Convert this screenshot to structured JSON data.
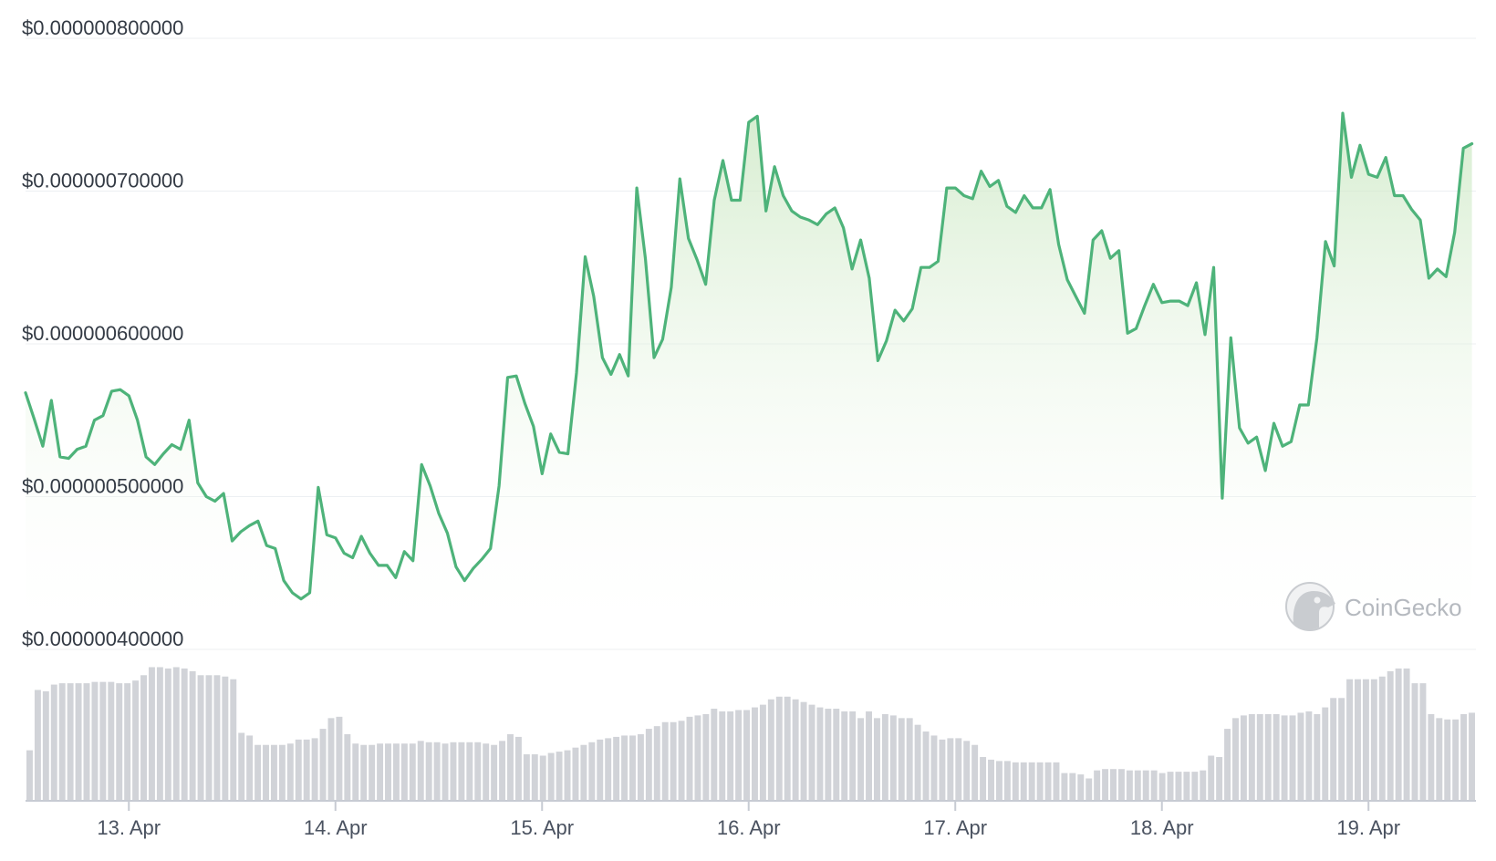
{
  "chart_data": {
    "type": "area",
    "watermark": "CoinGecko",
    "colors": {
      "line": "#4eb37a",
      "fill_top": "#c9e7c0",
      "volume_bar": "#d1d3d8",
      "grid": "#eceff2",
      "axis": "#c7cbd3"
    },
    "price_axis": {
      "ylim": [
        4e-07,
        8e-07
      ],
      "tick_values": [
        8e-07,
        7e-07,
        6e-07,
        5e-07,
        4e-07
      ],
      "tick_labels": [
        "$0.000000800000",
        "$0.000000700000",
        "$0.000000600000",
        "$0.000000500000",
        "$0.000000400000"
      ]
    },
    "x_axis": {
      "range_days": [
        12.5,
        19.52
      ],
      "tick_values": [
        13,
        14,
        15,
        16,
        17,
        18,
        19
      ],
      "tick_labels": [
        "13. Apr",
        "14. Apr",
        "15. Apr",
        "16. Apr",
        "17. Apr",
        "18. Apr",
        "19. Apr"
      ]
    },
    "price_series": {
      "start_day": 12.5,
      "step_day": 0.04167,
      "values_e9": [
        568,
        551,
        533,
        563,
        526,
        525,
        531,
        533,
        550,
        553,
        569,
        570,
        566,
        550,
        526,
        521,
        528,
        534,
        531,
        550,
        509,
        500,
        497,
        502,
        471,
        477,
        481,
        484,
        468,
        466,
        445,
        437,
        433,
        437,
        506,
        475,
        473,
        463,
        460,
        474,
        463,
        455,
        455,
        447,
        464,
        458,
        521,
        507,
        489,
        476,
        454,
        445,
        453,
        459,
        466,
        507,
        578,
        579,
        561,
        546,
        515,
        541,
        529,
        528,
        581,
        657,
        631,
        591,
        580,
        593,
        579,
        702,
        656,
        591,
        603,
        637,
        708,
        669,
        655,
        639,
        694,
        720,
        694,
        694,
        745,
        749,
        687,
        716,
        697,
        687,
        683,
        681,
        678,
        685,
        689,
        676,
        649,
        668,
        643,
        589,
        602,
        622,
        615,
        623,
        650,
        650,
        654,
        702,
        702,
        697,
        695,
        713,
        703,
        707,
        690,
        686,
        697,
        689,
        689,
        701,
        665,
        642,
        631,
        620,
        668,
        674,
        656,
        661,
        607,
        610,
        625,
        639,
        627,
        628,
        628,
        625,
        640,
        606,
        650,
        499,
        604,
        545,
        535,
        539,
        517,
        548,
        533,
        536,
        560,
        560,
        604,
        667,
        651,
        751,
        709,
        730,
        711,
        709,
        722,
        697,
        697,
        688,
        681,
        643,
        649,
        644,
        673,
        728,
        731
      ]
    },
    "volume_series": {
      "values_rel": [
        0.37,
        0.82,
        0.81,
        0.86,
        0.87,
        0.87,
        0.87,
        0.87,
        0.88,
        0.88,
        0.88,
        0.87,
        0.87,
        0.89,
        0.93,
        0.99,
        0.99,
        0.98,
        0.99,
        0.98,
        0.96,
        0.93,
        0.93,
        0.93,
        0.92,
        0.9,
        0.5,
        0.48,
        0.41,
        0.41,
        0.41,
        0.41,
        0.42,
        0.45,
        0.45,
        0.46,
        0.53,
        0.61,
        0.62,
        0.49,
        0.42,
        0.41,
        0.41,
        0.42,
        0.42,
        0.42,
        0.42,
        0.42,
        0.44,
        0.43,
        0.43,
        0.42,
        0.43,
        0.43,
        0.43,
        0.43,
        0.42,
        0.41,
        0.44,
        0.49,
        0.47,
        0.34,
        0.34,
        0.33,
        0.35,
        0.36,
        0.37,
        0.39,
        0.41,
        0.43,
        0.45,
        0.46,
        0.47,
        0.48,
        0.48,
        0.49,
        0.53,
        0.55,
        0.58,
        0.58,
        0.59,
        0.62,
        0.63,
        0.64,
        0.68,
        0.66,
        0.66,
        0.67,
        0.67,
        0.69,
        0.71,
        0.75,
        0.77,
        0.77,
        0.75,
        0.73,
        0.71,
        0.69,
        0.68,
        0.68,
        0.66,
        0.66,
        0.61,
        0.66,
        0.61,
        0.64,
        0.63,
        0.61,
        0.61,
        0.56,
        0.51,
        0.48,
        0.45,
        0.46,
        0.46,
        0.44,
        0.41,
        0.32,
        0.3,
        0.29,
        0.29,
        0.28,
        0.28,
        0.28,
        0.28,
        0.28,
        0.28,
        0.2,
        0.2,
        0.19,
        0.16,
        0.22,
        0.23,
        0.23,
        0.23,
        0.22,
        0.22,
        0.22,
        0.22,
        0.2,
        0.21,
        0.21,
        0.21,
        0.21,
        0.22,
        0.33,
        0.32,
        0.53,
        0.61,
        0.63,
        0.64,
        0.64,
        0.64,
        0.64,
        0.63,
        0.63,
        0.65,
        0.66,
        0.64,
        0.69,
        0.76,
        0.76,
        0.9,
        0.9,
        0.9,
        0.9,
        0.92,
        0.96,
        0.98,
        0.98,
        0.87,
        0.87,
        0.64,
        0.61,
        0.6,
        0.6,
        0.64,
        0.65
      ]
    }
  }
}
